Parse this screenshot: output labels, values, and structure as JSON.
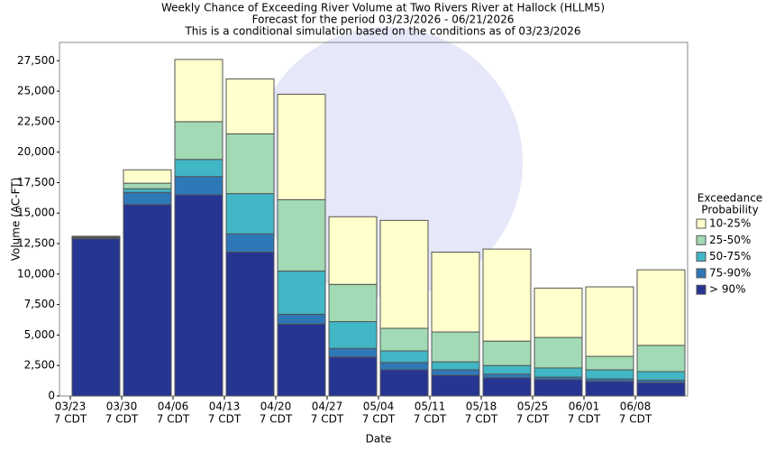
{
  "chart_data": {
    "type": "stacked_bar",
    "title": "Weekly Chance of Exceeding River Volume at Two Rivers River at Hallock (HLLM5)",
    "subtitle": "Forecast for the period 03/23/2026 - 06/21/2026",
    "note": "This is a conditional simulation based on the conditions as of 03/23/2026",
    "x_label": "Date",
    "y_label": "Volume (AC-FT)",
    "legend_title": [
      "Exceedance",
      "Probability"
    ],
    "categories": [
      [
        "03/23",
        "7 CDT"
      ],
      [
        "03/30",
        "7 CDT"
      ],
      [
        "04/06",
        "7 CDT"
      ],
      [
        "04/13",
        "7 CDT"
      ],
      [
        "04/20",
        "7 CDT"
      ],
      [
        "04/27",
        "7 CDT"
      ],
      [
        "05/04",
        "7 CDT"
      ],
      [
        "05/11",
        "7 CDT"
      ],
      [
        "05/18",
        "7 CDT"
      ],
      [
        "05/25",
        "7 CDT"
      ],
      [
        "06/01",
        "7 CDT"
      ],
      [
        "06/08",
        "7 CDT"
      ]
    ],
    "series": [
      {
        "name": "> 90%",
        "color": "#263592",
        "values": [
          12900,
          15700,
          16500,
          11800,
          5900,
          3200,
          2150,
          1700,
          1500,
          1350,
          1200,
          1100
        ]
      },
      {
        "name": "75-90%",
        "color": "#2e78b8",
        "values": [
          60,
          1000,
          1500,
          1500,
          800,
          700,
          600,
          450,
          300,
          200,
          200,
          200
        ]
      },
      {
        "name": "50-75%",
        "color": "#41b6c4",
        "values": [
          60,
          300,
          1400,
          3300,
          3550,
          2200,
          950,
          650,
          700,
          750,
          750,
          700
        ]
      },
      {
        "name": "25-50%",
        "color": "#a1dab4",
        "values": [
          40,
          450,
          3100,
          4900,
          5850,
          3050,
          1850,
          2450,
          2000,
          2500,
          1100,
          2150
        ]
      },
      {
        "name": "10-25%",
        "color": "#ffffcc",
        "values": [
          40,
          1100,
          5100,
          4500,
          8650,
          5550,
          8850,
          6550,
          7550,
          4050,
          5700,
          6200
        ]
      }
    ],
    "ylim": [
      0,
      29000
    ],
    "yticks": [
      0,
      {
        "value": 2500,
        "label": "2,500"
      },
      {
        "value": 5000,
        "label": "5,000"
      },
      {
        "value": 7500,
        "label": "7,500"
      },
      {
        "value": 10000,
        "label": "10,000"
      },
      {
        "value": 12500,
        "label": "12,500"
      },
      {
        "value": 15000,
        "label": "15,000"
      },
      {
        "value": 17500,
        "label": "17,500"
      },
      {
        "value": 20000,
        "label": "20,000"
      },
      {
        "value": 22500,
        "label": "22,500"
      },
      {
        "value": 25000,
        "label": "25,000"
      },
      {
        "value": 27500,
        "label": "27,500"
      }
    ],
    "legend_position": "right"
  }
}
